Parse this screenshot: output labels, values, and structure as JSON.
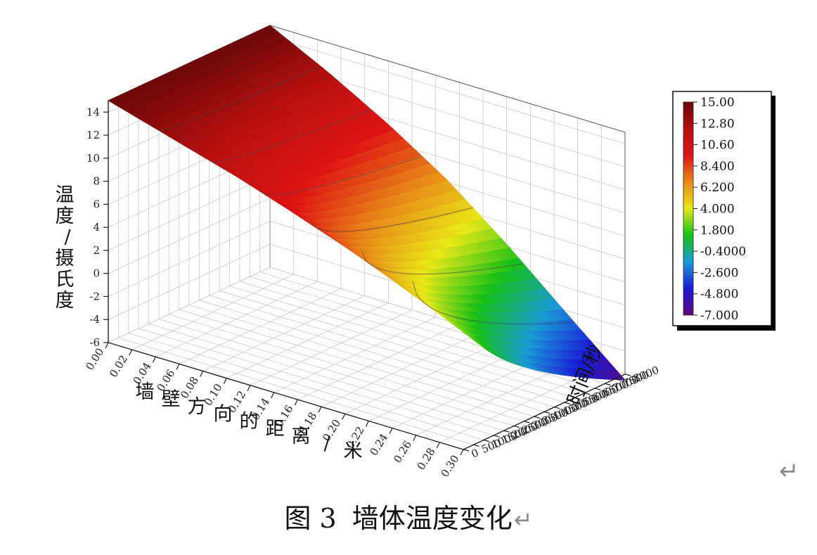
{
  "caption": {
    "figure_no": "图 3",
    "text": "墙体温度变化",
    "return_mark": "↵"
  },
  "right_margin_mark": "↵",
  "colors": {
    "colormap": [
      "#5d0a7a",
      "#1a1ad6",
      "#1a9ad6",
      "#16c016",
      "#e8e818",
      "#e88a18",
      "#dd1414",
      "#b81010",
      "#6a0808"
    ],
    "grid": "#c8c8c8",
    "contour": "#444444"
  },
  "chart_data": {
    "type": "surface3d",
    "title": "",
    "xlabel": "墙壁方向的距离/米",
    "ylabel": "时间/秒",
    "zlabel": "温度/摄氏度",
    "x_ticks": [
      "0.00",
      "0.02",
      "0.04",
      "0.06",
      "0.08",
      "0.10",
      "0.12",
      "0.14",
      "0.16",
      "0.18",
      "0.20",
      "0.22",
      "0.24",
      "0.26",
      "0.28",
      "0.30"
    ],
    "y_ticks": [
      "0",
      "500",
      "1000",
      "1500",
      "2000",
      "2500",
      "3000",
      "3500",
      "4000",
      "4500",
      "5000",
      "5500",
      "6000",
      "6500",
      "7000",
      "7500",
      "8000"
    ],
    "z_ticks": [
      "-6",
      "-4",
      "-2",
      "0",
      "2",
      "4",
      "6",
      "8",
      "10",
      "12",
      "14"
    ],
    "xlim": [
      0,
      0.3
    ],
    "ylim": [
      0,
      8000
    ],
    "zlim": [
      -6,
      15
    ],
    "colorbar": {
      "labels": [
        "15.00",
        "12.80",
        "10.60",
        "8.400",
        "6.200",
        "4.000",
        "1.800",
        "-0.4000",
        "-2.600",
        "-4.800",
        "-7.000"
      ],
      "min": -7,
      "max": 15
    },
    "surface": {
      "x_cold_face": 0.3,
      "t_inside": 15,
      "t_outside_min": -6.5,
      "note_values": {
        "x": [
          0.0,
          0.05,
          0.1,
          0.15,
          0.2,
          0.25,
          0.3
        ],
        "temp_t0": [
          15,
          13.5,
          12,
          10.5,
          9,
          7.5,
          6
        ],
        "temp_t8000": [
          15,
          12.4,
          9.5,
          6.2,
          2.2,
          -2.2,
          -6.5
        ]
      }
    },
    "grid": true,
    "legend": "colorbar-right"
  }
}
